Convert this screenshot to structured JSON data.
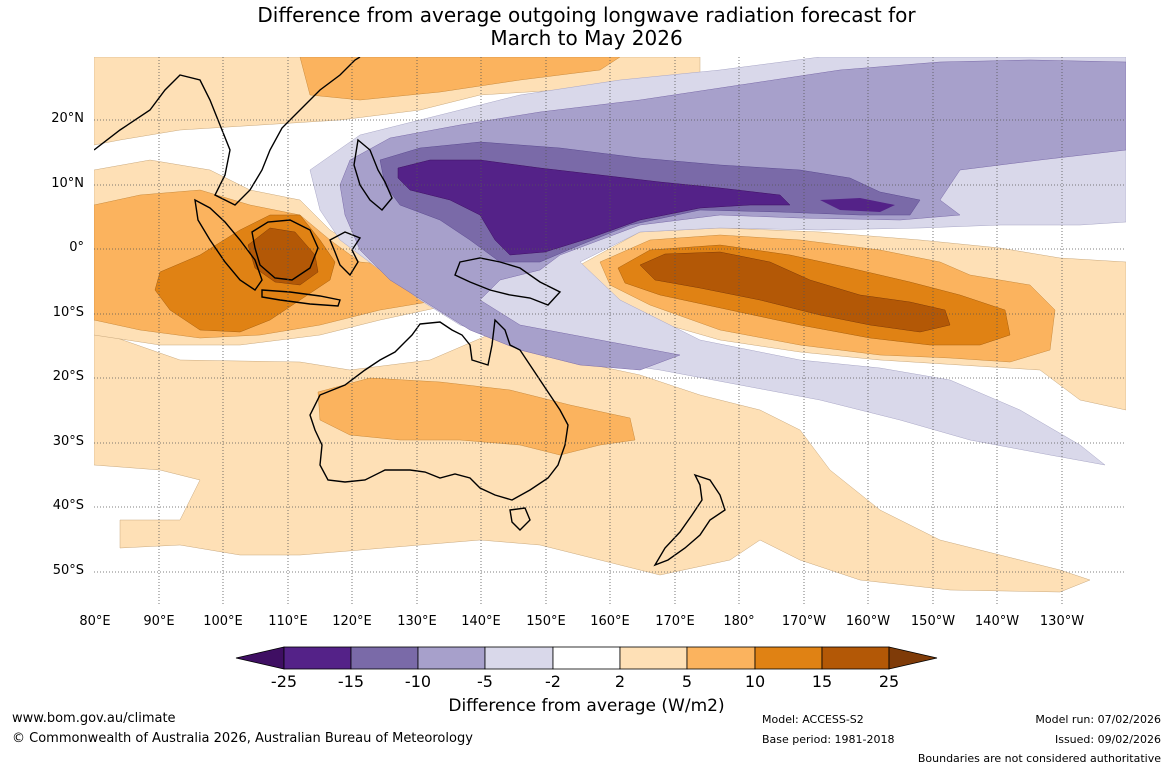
{
  "title_line1": "Difference from average outgoing longwave radiation forecast for",
  "title_line2": "March to May 2026",
  "lat_labels": [
    "20°N",
    "10°N",
    "0°",
    "10°S",
    "20°S",
    "30°S",
    "40°S",
    "50°S"
  ],
  "lon_labels": [
    "80°E",
    "90°E",
    "100°E",
    "110°E",
    "120°E",
    "130°E",
    "140°E",
    "150°E",
    "160°E",
    "170°E",
    "180°",
    "170°W",
    "160°W",
    "150°W",
    "140°W",
    "130°W"
  ],
  "colorbar": {
    "ticks": [
      "-25",
      "-15",
      "-10",
      "-5",
      "-2",
      "2",
      "5",
      "10",
      "15",
      "25"
    ],
    "colors": [
      "#3f0f63",
      "#542288",
      "#7a6aa8",
      "#a7a0cb",
      "#d9d8ea",
      "#ffffff",
      "#fee0b6",
      "#fbb35e",
      "#e08214",
      "#b35806",
      "#7f3b08"
    ],
    "title": "Difference from average (W/m2)"
  },
  "footer": {
    "website": "www.bom.gov.au/climate",
    "copyright": "© Commonwealth of Australia 2026, Australian Bureau of Meteorology",
    "model": "Model: ACCESS-S2",
    "base_period": "Base period: 1981-2018",
    "model_run": "Model run: 07/02/2026",
    "issued": "Issued: 09/02/2026",
    "disclaimer": "Boundaries are not considered authoritative"
  }
}
